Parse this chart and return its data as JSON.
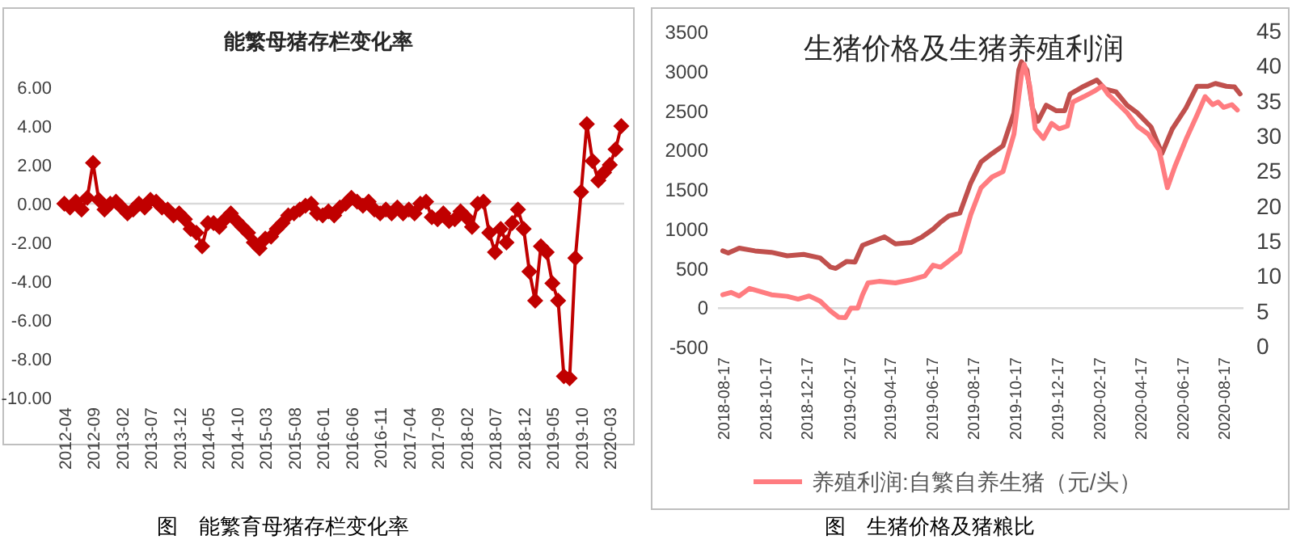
{
  "chart_data": [
    {
      "type": "line",
      "title": "能繁母猪存栏变化率",
      "marker": "diamond",
      "legend": false,
      "categories": [
        "2012-04",
        null,
        null,
        null,
        null,
        "2012-09",
        null,
        null,
        null,
        null,
        "2013-02",
        null,
        null,
        null,
        null,
        "2013-07",
        null,
        null,
        null,
        null,
        "2013-12",
        null,
        null,
        null,
        null,
        "2014-05",
        null,
        null,
        null,
        null,
        "2014-10",
        null,
        null,
        null,
        null,
        "2015-03",
        null,
        null,
        null,
        null,
        "2015-08",
        null,
        null,
        null,
        null,
        "2016-01",
        null,
        null,
        null,
        null,
        "2016-06",
        null,
        null,
        null,
        null,
        "2016-11",
        null,
        null,
        null,
        null,
        "2017-04",
        null,
        null,
        null,
        null,
        "2017-09",
        null,
        null,
        null,
        null,
        "2018-02",
        null,
        null,
        null,
        null,
        "2018-07",
        null,
        null,
        null,
        null,
        "2018-12",
        null,
        null,
        null,
        null,
        "2019-05",
        null,
        null,
        null,
        null,
        "2019-10",
        null,
        null,
        null,
        null,
        "2020-03",
        null,
        null
      ],
      "series": [
        {
          "color": "#c00000",
          "values": [
            0,
            -0.2,
            0.1,
            -0.3,
            0.3,
            2.1,
            0.2,
            -0.3,
            0,
            0.1,
            -0.2,
            -0.5,
            -0.3,
            0,
            -0.2,
            0.2,
            0.1,
            -0.2,
            -0.3,
            -0.6,
            -0.5,
            -0.8,
            -1.3,
            -1.5,
            -2.2,
            -1,
            -1,
            -1.2,
            -0.8,
            -0.5,
            -0.9,
            -1.2,
            -1.5,
            -2,
            -2.3,
            -1.8,
            -1.7,
            -1.3,
            -1,
            -0.6,
            -0.5,
            -0.3,
            -0.1,
            0,
            -0.5,
            -0.6,
            -0.4,
            -0.6,
            -0.2,
            0,
            0.3,
            0.1,
            -0.1,
            0.1,
            -0.3,
            -0.5,
            -0.3,
            -0.5,
            -0.2,
            -0.5,
            -0.3,
            -0.5,
            0,
            0.1,
            -0.7,
            -0.8,
            -0.5,
            -0.9,
            -0.8,
            -0.4,
            -0.7,
            -1.2,
            0,
            0.1,
            -1.5,
            -2.5,
            -1.3,
            -2,
            -1,
            -0.3,
            -1.3,
            -3.5,
            -5,
            -2.2,
            -2.5,
            -4.1,
            -5,
            -8.9,
            -9,
            -2.8,
            0.6,
            4.1,
            2.2,
            1.2,
            1.6,
            2,
            2.8,
            4
          ]
        }
      ],
      "ylim": [
        -10,
        6
      ],
      "yticks": [
        {
          "value": -10,
          "label": "-10.00"
        },
        {
          "value": -8,
          "label": "-8.00"
        },
        {
          "value": -6,
          "label": "-6.00"
        },
        {
          "value": -4,
          "label": "-4.00"
        },
        {
          "value": -2,
          "label": "-2.00"
        },
        {
          "value": 0,
          "label": "0.00"
        },
        {
          "value": 2,
          "label": "2.00"
        },
        {
          "value": 4,
          "label": "4.00"
        },
        {
          "value": 6,
          "label": "6.00"
        }
      ],
      "annotations": [
        "图　能繁育母猪存栏变化率"
      ]
    },
    {
      "type": "line",
      "title": "生猪价格及生猪养殖利润",
      "legend": "bottom",
      "series": [
        {
          "color": "#c0504d",
          "axis": "y2",
          "x": [
            "2018-08-17",
            "2018-08-25",
            "2018-09-10",
            "2018-10-03",
            "2018-10-27",
            "2018-11-19",
            "2018-12-13",
            "2019-01-06",
            "2019-01-21",
            "2019-01-29",
            "2019-02-14",
            "2019-02-26",
            "2019-03-09",
            "2019-03-25",
            "2019-04-10",
            "2019-04-26",
            "2019-05-19",
            "2019-06-04",
            "2019-06-20",
            "2019-07-01",
            "2019-07-13",
            "2019-07-29",
            "2019-08-14",
            "2019-08-29",
            "2019-09-14",
            "2019-09-30",
            "2019-10-16",
            "2019-10-23",
            "2019-10-27",
            "2019-11-04",
            "2019-11-12",
            "2019-11-20",
            "2019-12-02",
            "2019-12-17",
            "2019-12-29",
            "2020-01-06",
            "2020-01-26",
            "2020-02-14",
            "2020-02-26",
            "2020-03-13",
            "2020-03-29",
            "2020-04-13",
            "2020-05-03",
            "2020-05-19",
            "2020-06-03",
            "2020-06-23",
            "2020-07-09",
            "2020-07-25",
            "2020-08-05",
            "2020-08-21",
            "2020-09-02",
            "2020-09-10"
          ],
          "values": [
            13.8,
            13.5,
            14.2,
            13.8,
            13.6,
            13.1,
            13.3,
            12.8,
            11.5,
            11.3,
            12.3,
            12.2,
            14.6,
            15.2,
            15.8,
            14.8,
            15,
            15.8,
            16.9,
            17.9,
            18.8,
            19.2,
            23.5,
            26.5,
            27.7,
            28.8,
            33.5,
            39.6,
            40.8,
            39.6,
            34.2,
            32.3,
            34.6,
            33.8,
            33.8,
            36.2,
            37.3,
            38.2,
            36.9,
            36.5,
            34.6,
            33.5,
            31.5,
            27.7,
            31.2,
            34.2,
            37.3,
            37.3,
            37.7,
            37.3,
            37.2,
            36.2
          ]
        },
        {
          "name": "养殖利润:自繁自养生猪（元/头）",
          "color": "#ff7c80",
          "x": [
            "2018-08-17",
            "2018-08-29",
            "2018-09-10",
            "2018-09-25",
            "2018-10-27",
            "2018-11-19",
            "2018-12-05",
            "2018-12-21",
            "2019-01-06",
            "2019-01-21",
            "2019-02-02",
            "2019-02-12",
            "2019-02-20",
            "2019-03-02",
            "2019-03-09",
            "2019-03-17",
            "2019-04-02",
            "2019-04-26",
            "2019-05-19",
            "2019-06-08",
            "2019-06-20",
            "2019-07-01",
            "2019-07-13",
            "2019-07-29",
            "2019-08-14",
            "2019-08-29",
            "2019-09-14",
            "2019-09-30",
            "2019-10-16",
            "2019-10-27",
            "2019-10-31",
            "2019-11-08",
            "2019-11-16",
            "2019-11-28",
            "2019-12-10",
            "2019-12-21",
            "2020-01-02",
            "2020-01-10",
            "2020-01-26",
            "2020-02-10",
            "2020-02-22",
            "2020-03-01",
            "2020-03-13",
            "2020-03-29",
            "2020-04-13",
            "2020-04-29",
            "2020-05-15",
            "2020-05-27",
            "2020-06-07",
            "2020-06-23",
            "2020-07-09",
            "2020-07-21",
            "2020-08-01",
            "2020-08-09",
            "2020-08-17",
            "2020-08-29",
            "2020-09-06"
          ],
          "values": [
            170,
            200,
            155,
            250,
            170,
            150,
            115,
            155,
            90,
            -35,
            -115,
            -120,
            0,
            0,
            170,
            320,
            340,
            320,
            360,
            410,
            545,
            520,
            600,
            712,
            1188,
            1528,
            1664,
            1732,
            2208,
            2956,
            3092,
            2820,
            2276,
            2154,
            2344,
            2276,
            2310,
            2616,
            2684,
            2752,
            2820,
            2718,
            2616,
            2480,
            2310,
            2208,
            2004,
            1528,
            1800,
            2140,
            2446,
            2684,
            2582,
            2616,
            2548,
            2582,
            2514
          ]
        }
      ],
      "xlim": [
        "2018-08-10",
        "2020-09-15"
      ],
      "xticks": [
        "2018-08-17",
        "2018-10-17",
        "2018-12-17",
        "2019-02-17",
        "2019-04-17",
        "2019-06-17",
        "2019-08-17",
        "2019-10-17",
        "2019-12-17",
        "2020-02-17",
        "2020-04-17",
        "2020-06-17",
        "2020-08-17"
      ],
      "ylim": [
        -500,
        3500
      ],
      "yticks": [
        -500,
        0,
        500,
        1000,
        1500,
        2000,
        2500,
        3000,
        3500
      ],
      "y2lim": [
        0,
        45
      ],
      "y2ticks": [
        0,
        5,
        10,
        15,
        20,
        25,
        30,
        35,
        40,
        45
      ],
      "annotations": [
        "图　生猪价格及猪粮比"
      ]
    }
  ]
}
